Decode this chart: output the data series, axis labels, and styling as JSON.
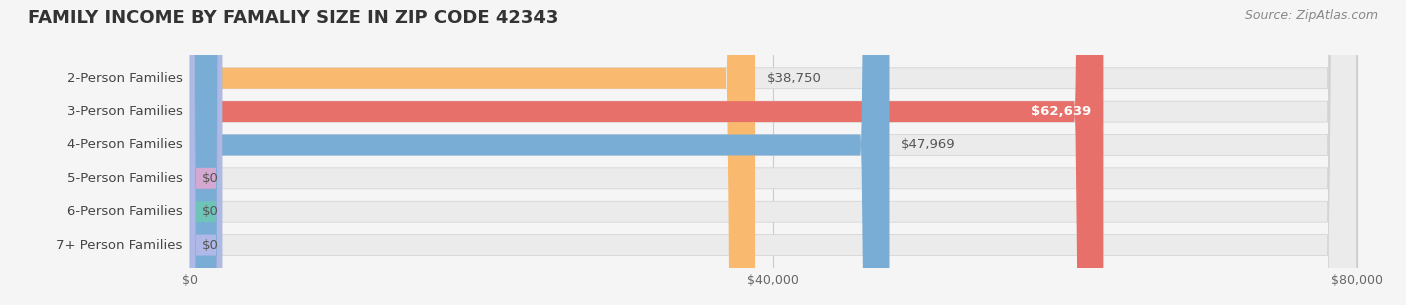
{
  "title": "FAMILY INCOME BY FAMALIY SIZE IN ZIP CODE 42343",
  "source": "Source: ZipAtlas.com",
  "categories": [
    "2-Person Families",
    "3-Person Families",
    "4-Person Families",
    "5-Person Families",
    "6-Person Families",
    "7+ Person Families"
  ],
  "values": [
    38750,
    62639,
    47969,
    0,
    0,
    0
  ],
  "bar_colors": [
    "#f9b96e",
    "#e8706a",
    "#7aadd6",
    "#d4a8d0",
    "#6ec4b8",
    "#b0b8e8"
  ],
  "label_colors": [
    "#7a5a20",
    "#ffffff",
    "#3a6080",
    "#7a5a7a",
    "#2a7060",
    "#5060a0"
  ],
  "value_label_inside": [
    false,
    true,
    false,
    false,
    false,
    false
  ],
  "xlim": [
    0,
    80000
  ],
  "xticks": [
    0,
    40000,
    80000
  ],
  "xtick_labels": [
    "$0",
    "$40,000",
    "$80,000"
  ],
  "background_color": "#f5f5f5",
  "bar_bg_color": "#ebebeb",
  "title_fontsize": 13,
  "bar_height": 0.62,
  "label_fontsize": 9.5,
  "value_fontsize": 9.5,
  "source_fontsize": 9
}
